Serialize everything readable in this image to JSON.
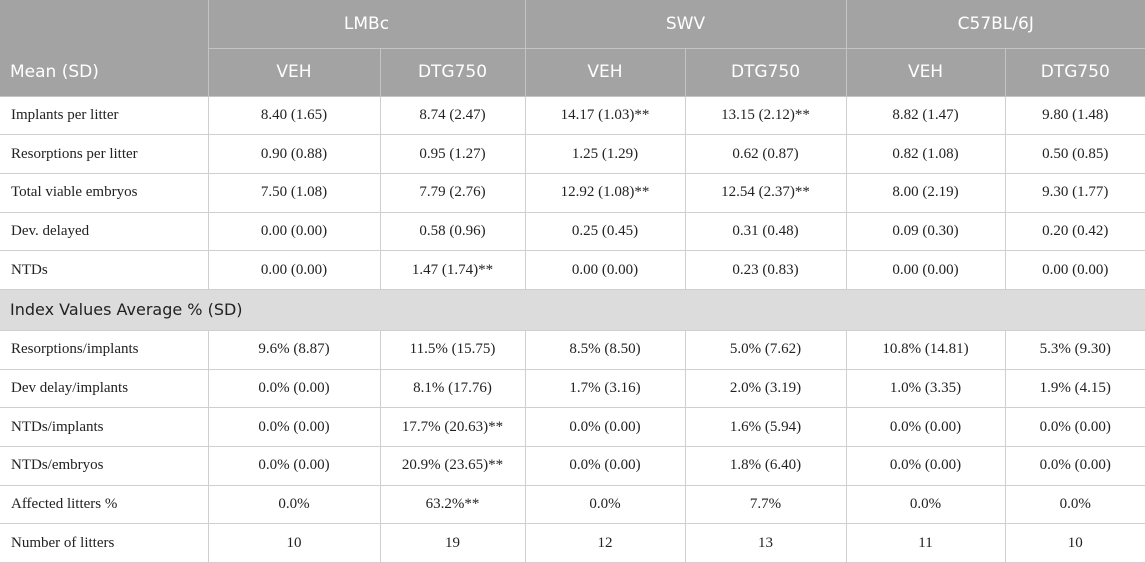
{
  "header": {
    "groups": [
      "LMBc",
      "SWV",
      "C57BL/6J"
    ],
    "row_label": "Mean (SD)",
    "subgroups": [
      "VEH",
      "DTG750",
      "VEH",
      "DTG750",
      "VEH",
      "DTG750"
    ]
  },
  "mean_rows": [
    {
      "label": "Implants per litter",
      "cells": [
        "8.40 (1.65)",
        "8.74 (2.47)",
        "14.17 (1.03)**",
        "13.15 (2.12)**",
        "8.82 (1.47)",
        "9.80 (1.48)"
      ]
    },
    {
      "label": "Resorptions per litter",
      "cells": [
        "0.90 (0.88)",
        "0.95 (1.27)",
        "1.25 (1.29)",
        "0.62 (0.87)",
        "0.82 (1.08)",
        "0.50 (0.85)"
      ]
    },
    {
      "label": "Total viable embryos",
      "cells": [
        "7.50 (1.08)",
        "7.79 (2.76)",
        "12.92 (1.08)**",
        "12.54 (2.37)**",
        "8.00 (2.19)",
        "9.30 (1.77)"
      ]
    },
    {
      "label": "Dev. delayed",
      "cells": [
        "0.00 (0.00)",
        "0.58 (0.96)",
        "0.25 (0.45)",
        "0.31 (0.48)",
        "0.09 (0.30)",
        "0.20 (0.42)"
      ]
    },
    {
      "label": "NTDs",
      "cells": [
        "0.00 (0.00)",
        "1.47 (1.74)**",
        "0.00 (0.00)",
        "0.23 (0.83)",
        "0.00 (0.00)",
        "0.00 (0.00)"
      ]
    }
  ],
  "index_section_title": "Index Values Average % (SD)",
  "index_rows": [
    {
      "label": "Resorptions/implants",
      "cells": [
        "9.6% (8.87)",
        "11.5% (15.75)",
        "8.5% (8.50)",
        "5.0% (7.62)",
        "10.8% (14.81)",
        "5.3% (9.30)"
      ]
    },
    {
      "label": "Dev delay/implants",
      "cells": [
        "0.0% (0.00)",
        "8.1% (17.76)",
        "1.7% (3.16)",
        "2.0% (3.19)",
        "1.0% (3.35)",
        "1.9% (4.15)"
      ]
    },
    {
      "label": "NTDs/implants",
      "cells": [
        "0.0% (0.00)",
        "17.7% (20.63)**",
        "0.0% (0.00)",
        "1.6% (5.94)",
        "0.0% (0.00)",
        "0.0% (0.00)"
      ]
    },
    {
      "label": "NTDs/embryos",
      "cells": [
        "0.0% (0.00)",
        "20.9% (23.65)**",
        "0.0% (0.00)",
        "1.8% (6.40)",
        "0.0% (0.00)",
        "0.0% (0.00)"
      ]
    },
    {
      "label": "Affected litters %",
      "cells": [
        "0.0%",
        "63.2%**",
        "0.0%",
        "7.7%",
        "0.0%",
        "0.0%"
      ]
    },
    {
      "label": "Number of litters",
      "cells": [
        "10",
        "19",
        "12",
        "13",
        "11",
        "10"
      ]
    }
  ]
}
